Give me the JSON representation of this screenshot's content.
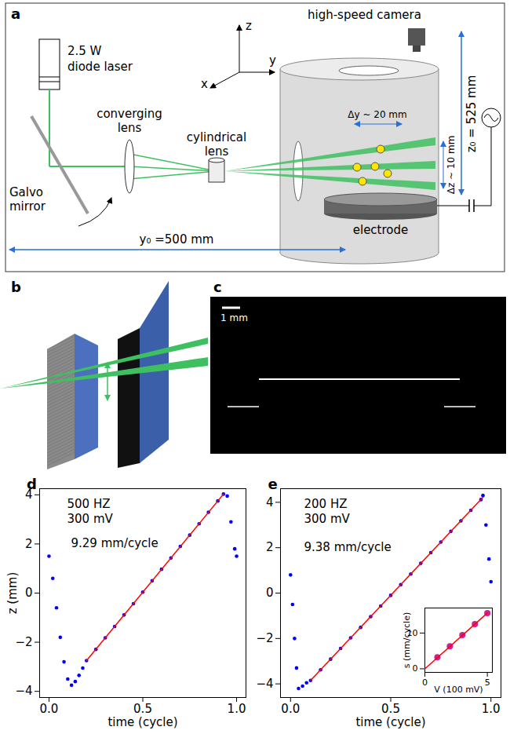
{
  "diagram": {
    "panel_a": {
      "label": "a",
      "laser": [
        "2.5 W",
        "diode laser"
      ],
      "mirror": [
        "Galvo",
        "mirror"
      ],
      "converging_lens": [
        "converging",
        "lens"
      ],
      "cylindrical_lens": [
        "cylindrical",
        "lens"
      ],
      "camera": "high-speed camera",
      "axes": {
        "x": "x",
        "y": "y",
        "z": "z"
      },
      "sheet_width": "Δy ~ 20 mm",
      "sheet_spacing": "Δz ~ 10 mm",
      "height": "z₀ = 525 mm",
      "electrode": "electrode",
      "distance": "y₀ =500 mm"
    },
    "panel_b": {
      "label": "b"
    },
    "panel_c": {
      "label": "c",
      "scale_bar": "1 mm"
    }
  },
  "chart_data": [
    {
      "type": "scatter",
      "panel_label": "d",
      "annotations": {
        "condition": [
          "500 HZ",
          "300 mV"
        ],
        "slope": "9.29 mm/cycle"
      },
      "x_label": "time (cycle)",
      "y_label": "z (mm)",
      "grid": false,
      "xlim": [
        -0.05,
        1.05
      ],
      "xticks": [
        {
          "value": 0,
          "label": "0.0"
        },
        0.5,
        {
          "value": 1,
          "label": "1.0"
        }
      ],
      "ylim": [
        -4.25,
        4.25
      ],
      "yticks": [
        {
          "value": -4,
          "label": "−4"
        },
        {
          "value": -2,
          "label": "−2"
        },
        0,
        2,
        4
      ],
      "series": [
        {
          "type": "scatter",
          "color": "blue",
          "marker": "circle",
          "x": [
            0.0,
            0.02,
            0.04,
            0.06,
            0.08,
            0.1,
            0.12,
            0.14,
            0.16,
            0.18,
            0.2,
            0.25,
            0.3,
            0.35,
            0.4,
            0.45,
            0.5,
            0.55,
            0.6,
            0.65,
            0.7,
            0.75,
            0.8,
            0.85,
            0.9,
            0.93,
            0.95,
            0.97,
            0.99,
            1.0
          ],
          "values": [
            1.5,
            0.6,
            -0.6,
            -1.8,
            -2.8,
            -3.5,
            -3.75,
            -3.6,
            -3.35,
            -3.05,
            -2.75,
            -2.29,
            -1.82,
            -1.36,
            -0.89,
            -0.43,
            0.04,
            0.5,
            0.97,
            1.43,
            1.9,
            2.36,
            2.82,
            3.29,
            3.75,
            4.03,
            3.95,
            2.9,
            1.8,
            1.5
          ]
        },
        {
          "type": "line",
          "color": "red",
          "line_style": "solid",
          "x": [
            0.2,
            0.93
          ],
          "values": [
            -2.75,
            4.03
          ]
        }
      ]
    },
    {
      "type": "scatter",
      "panel_label": "e",
      "annotations": {
        "condition": [
          "200 HZ",
          "300 mV"
        ],
        "slope": "9.38 mm/cycle"
      },
      "x_label": "time (cycle)",
      "grid": false,
      "xlim": [
        -0.05,
        1.05
      ],
      "xticks": [
        {
          "value": 0,
          "label": "0.0"
        },
        0.5,
        {
          "value": 1,
          "label": "1.0"
        }
      ],
      "ylim": [
        -4.6,
        4.6
      ],
      "yticks": [
        {
          "value": -4,
          "label": "−4"
        },
        {
          "value": -2,
          "label": "−2"
        },
        0,
        2,
        4
      ],
      "series": [
        {
          "type": "scatter",
          "color": "blue",
          "marker": "circle",
          "x": [
            0.0,
            0.01,
            0.02,
            0.03,
            0.04,
            0.06,
            0.08,
            0.1,
            0.15,
            0.2,
            0.25,
            0.3,
            0.35,
            0.4,
            0.45,
            0.5,
            0.55,
            0.6,
            0.65,
            0.7,
            0.75,
            0.8,
            0.85,
            0.9,
            0.95,
            0.96,
            0.975,
            0.99,
            1.0
          ],
          "values": [
            0.8,
            -0.5,
            -2.0,
            -3.3,
            -4.2,
            -4.1,
            -3.95,
            -3.85,
            -3.38,
            -2.91,
            -2.44,
            -1.97,
            -1.51,
            -1.04,
            -0.57,
            -0.1,
            0.37,
            0.84,
            1.31,
            1.78,
            2.25,
            2.72,
            3.18,
            3.65,
            4.12,
            4.3,
            3.0,
            1.5,
            0.5
          ]
        },
        {
          "type": "line",
          "color": "red",
          "line_style": "solid",
          "x": [
            0.1,
            0.96
          ],
          "values": [
            -3.85,
            4.22
          ]
        }
      ],
      "inset": {
        "type": "scatter",
        "x_label": "V (100 mV)",
        "y_label": "s (mm/cycle)",
        "grid": false,
        "xlim": [
          0,
          5.4
        ],
        "xticks": [
          0,
          5
        ],
        "ylim": [
          -1,
          17
        ],
        "yticks": [
          0,
          10
        ],
        "series": [
          {
            "type": "scatter",
            "color": "#cc2299",
            "marker": "circle",
            "x": [
              1,
              2,
              3,
              4,
              5
            ],
            "values": [
              3.2,
              6.3,
              9.4,
              12.5,
              15.6
            ]
          },
          {
            "type": "line",
            "color": "red",
            "line_style": "solid",
            "x": [
              0,
              5
            ],
            "values": [
              0,
              15.6
            ]
          }
        ]
      }
    }
  ]
}
